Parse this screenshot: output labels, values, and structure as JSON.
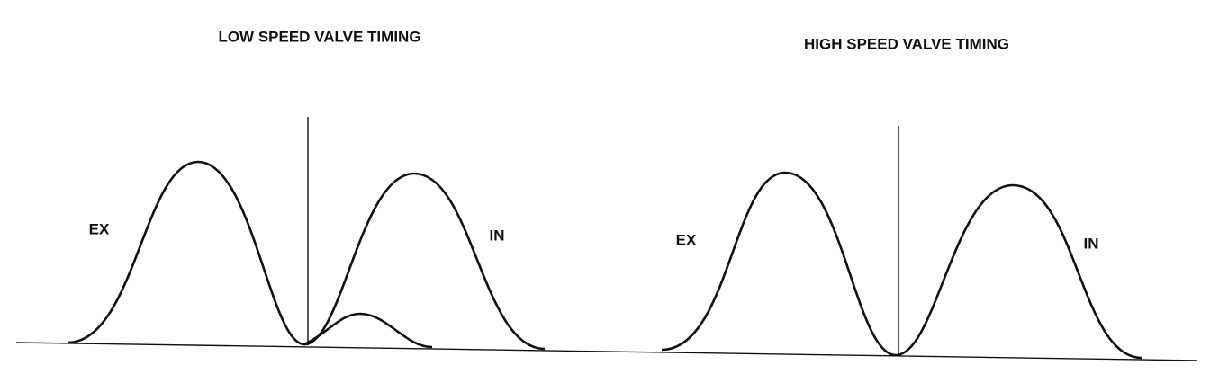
{
  "panels": [
    {
      "title": "LOW SPEED VALVE TIMING",
      "labels": [
        "EX",
        "IN"
      ]
    },
    {
      "title": "HIGH SPEED VALVE TIMING",
      "labels": [
        "EX",
        "IN"
      ]
    }
  ]
}
